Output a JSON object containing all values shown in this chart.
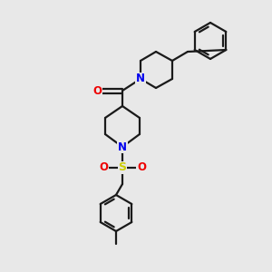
{
  "bg_color": "#e8e8e8",
  "bond_color": "#1a1a1a",
  "N_color": "#0000ee",
  "O_color": "#ee0000",
  "S_color": "#cccc00",
  "line_width": 1.6,
  "figsize": [
    3.0,
    3.0
  ],
  "dpi": 100,
  "xlim": [
    0,
    300
  ],
  "ylim": [
    0,
    300
  ]
}
